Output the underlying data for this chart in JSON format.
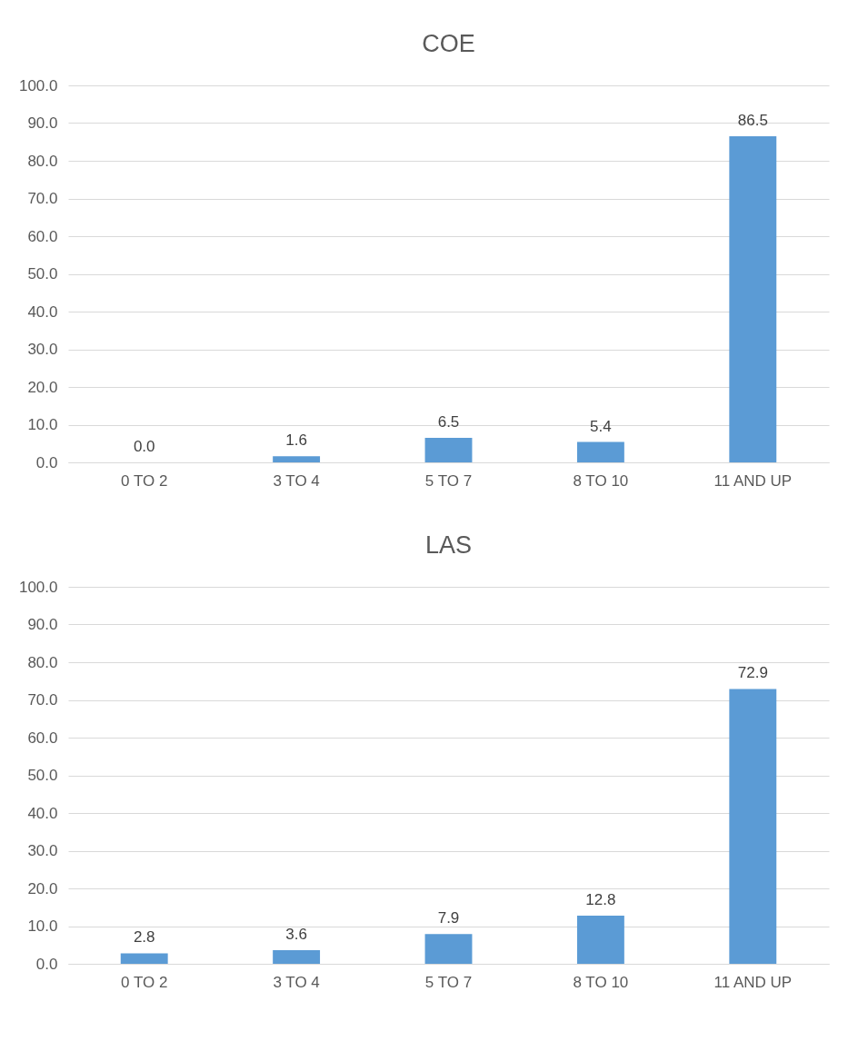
{
  "chart_data": [
    {
      "type": "bar",
      "title": "COE",
      "categories": [
        "0 TO 2",
        "3 TO 4",
        "5 TO 7",
        "8 TO 10",
        "11 AND UP"
      ],
      "values": [
        0.0,
        1.6,
        6.5,
        5.4,
        86.5
      ],
      "value_labels": [
        "0.0",
        "1.6",
        "6.5",
        "5.4",
        "86.5"
      ],
      "color": "#5b9bd5",
      "ylim": [
        0,
        100
      ],
      "yticks": [
        {
          "value": 0,
          "label": "0.0"
        },
        {
          "value": 10,
          "label": "10.0"
        },
        {
          "value": 20,
          "label": "20.0"
        },
        {
          "value": 30,
          "label": "30.0"
        },
        {
          "value": 40,
          "label": "40.0"
        },
        {
          "value": 50,
          "label": "50.0"
        },
        {
          "value": 60,
          "label": "60.0"
        },
        {
          "value": 70,
          "label": "70.0"
        },
        {
          "value": 80,
          "label": "80.0"
        },
        {
          "value": 90,
          "label": "90.0"
        },
        {
          "value": 100,
          "label": "100.0"
        }
      ],
      "grid": "y"
    },
    {
      "type": "bar",
      "title": "LAS",
      "categories": [
        "0 TO 2",
        "3 TO 4",
        "5 TO 7",
        "8 TO 10",
        "11 AND UP"
      ],
      "values": [
        2.8,
        3.6,
        7.9,
        12.8,
        72.9
      ],
      "value_labels": [
        "2.8",
        "3.6",
        "7.9",
        "12.8",
        "72.9"
      ],
      "color": "#5b9bd5",
      "ylim": [
        0,
        100
      ],
      "yticks": [
        {
          "value": 0,
          "label": "0.0"
        },
        {
          "value": 10,
          "label": "10.0"
        },
        {
          "value": 20,
          "label": "20.0"
        },
        {
          "value": 30,
          "label": "30.0"
        },
        {
          "value": 40,
          "label": "40.0"
        },
        {
          "value": 50,
          "label": "50.0"
        },
        {
          "value": 60,
          "label": "60.0"
        },
        {
          "value": 70,
          "label": "70.0"
        },
        {
          "value": 80,
          "label": "80.0"
        },
        {
          "value": 90,
          "label": "90.0"
        },
        {
          "value": 100,
          "label": "100.0"
        }
      ],
      "grid": "y"
    }
  ]
}
